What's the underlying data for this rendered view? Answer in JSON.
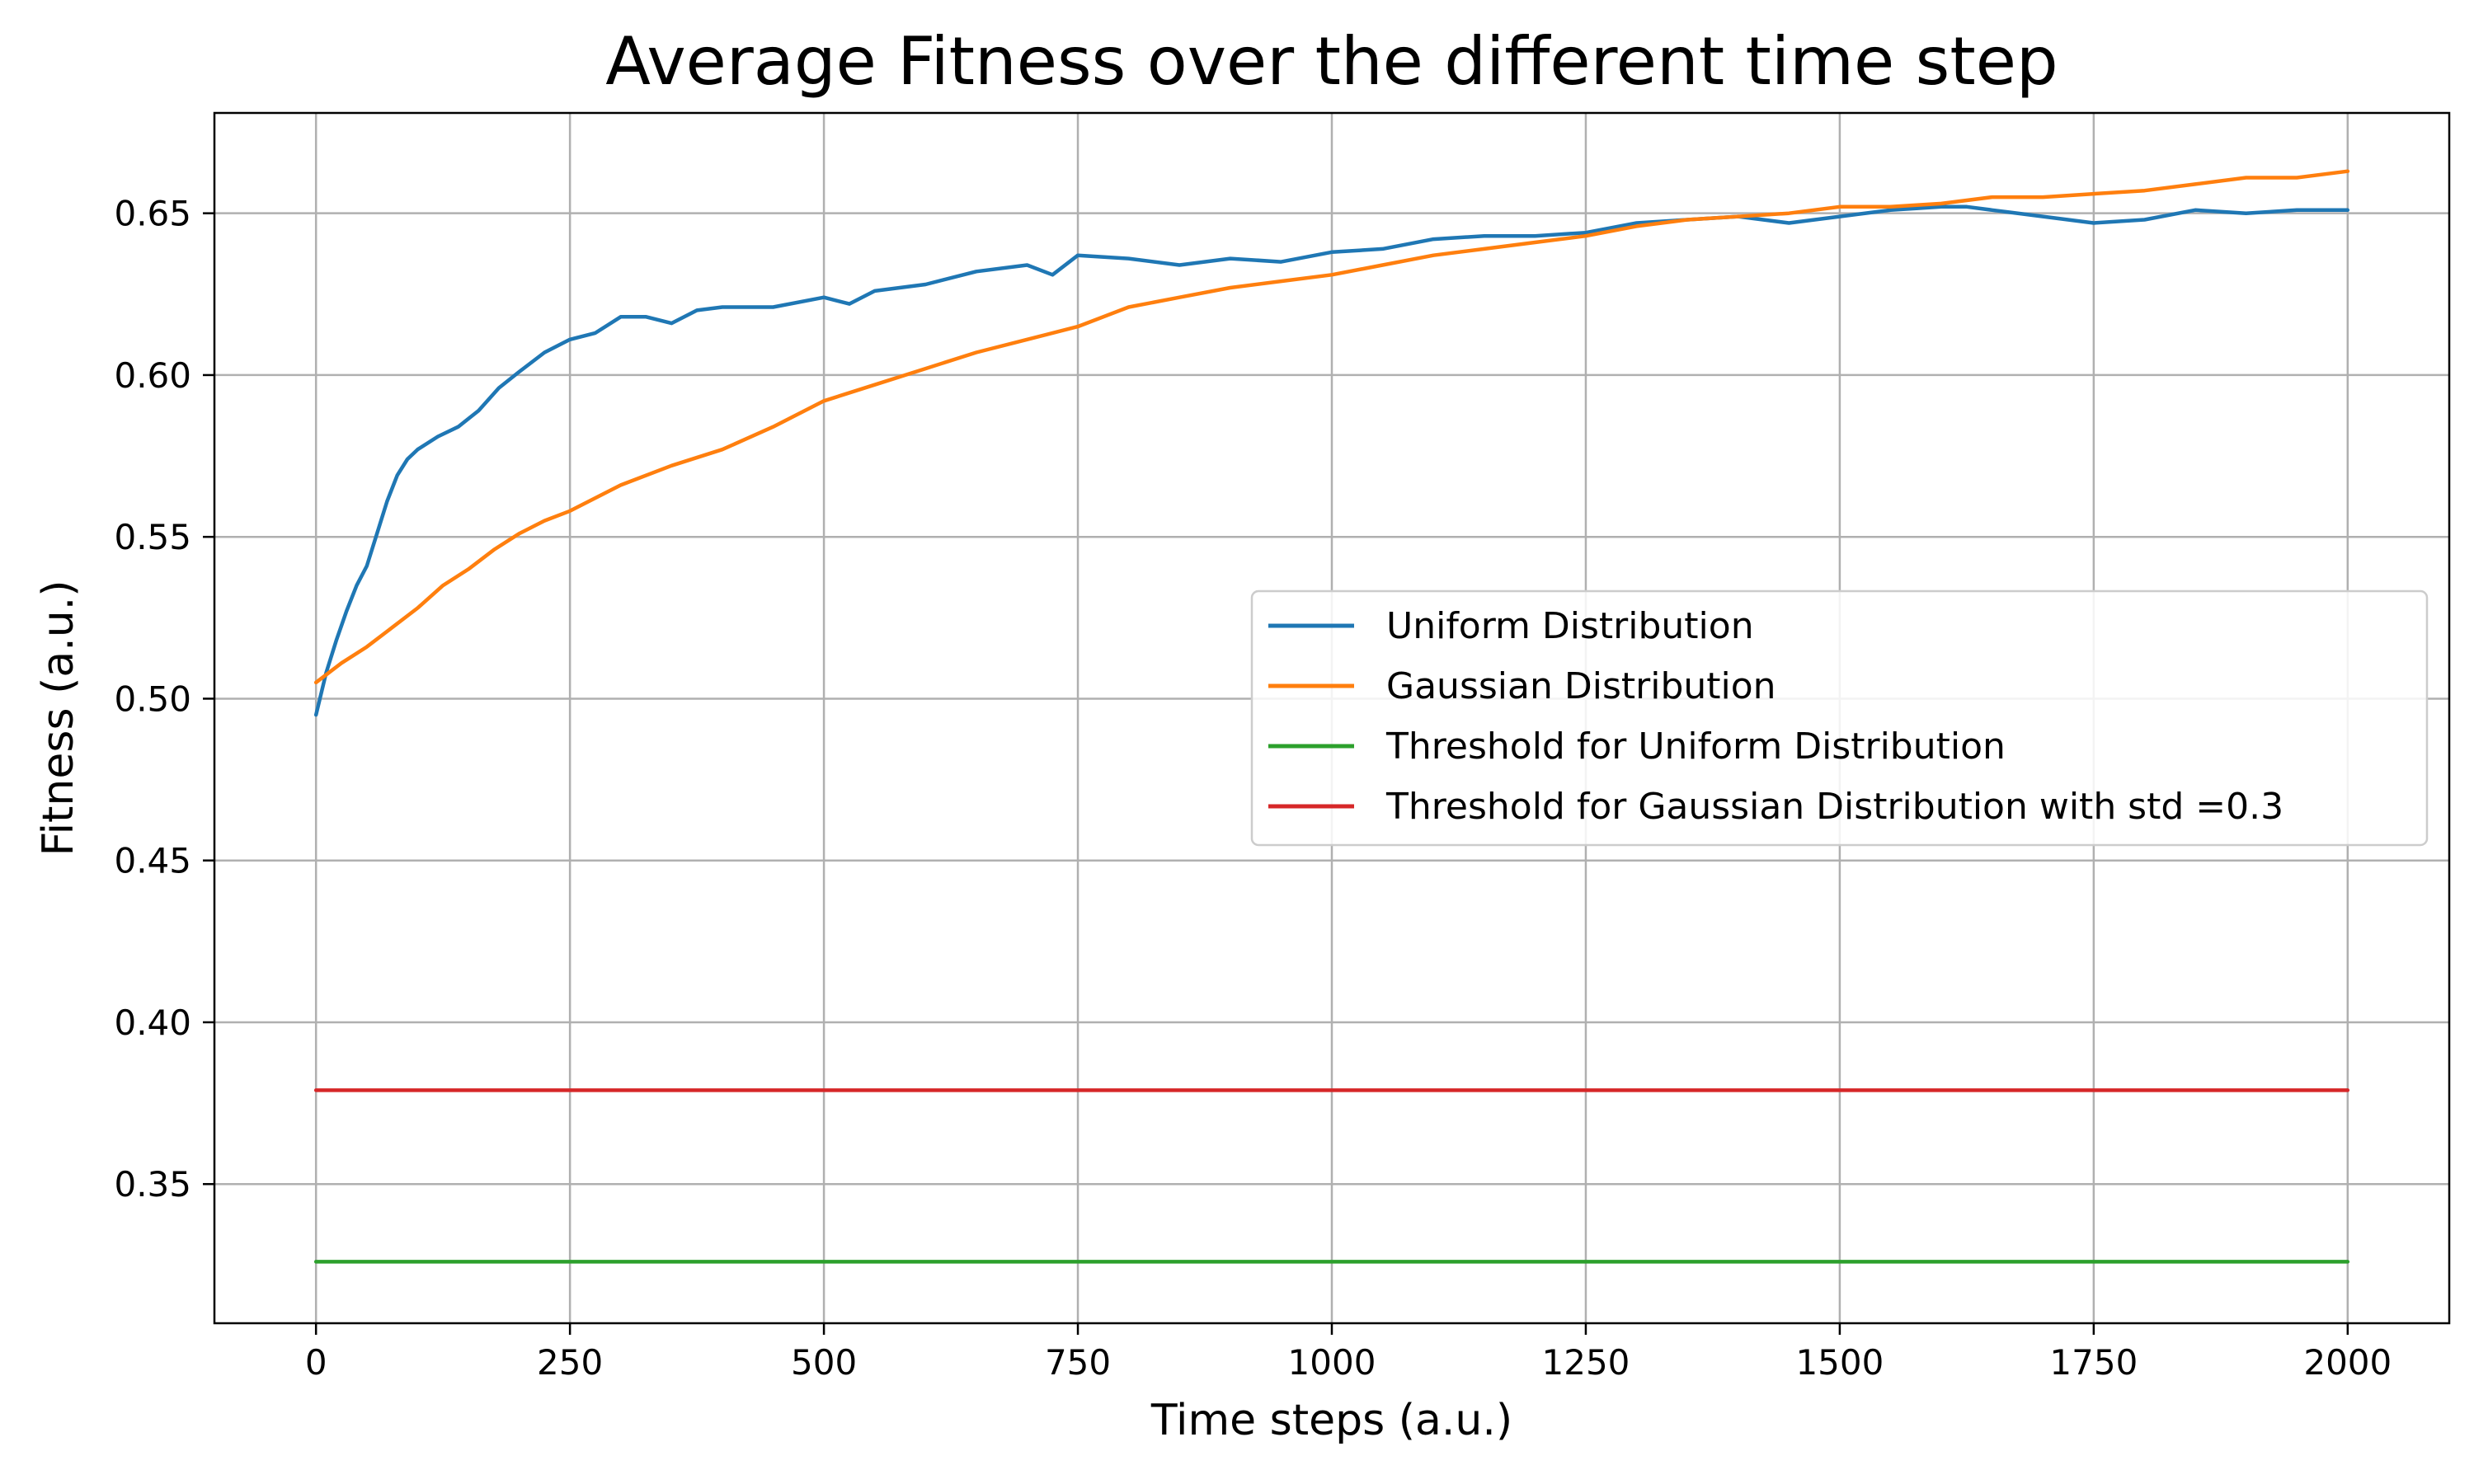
{
  "chart_data": {
    "type": "line",
    "title": "Average Fitness over the different time step",
    "xlabel": "Time steps (a.u.)",
    "ylabel": "Fitness (a.u.)",
    "xlim": [
      -100,
      2100
    ],
    "ylim": [
      0.307,
      0.681
    ],
    "xticks": [
      0,
      250,
      500,
      750,
      1000,
      1250,
      1500,
      1750,
      2000
    ],
    "yticks": [
      0.35,
      0.4,
      0.45,
      0.5,
      0.55,
      0.6,
      0.65
    ],
    "ytick_labels": [
      "0.35",
      "0.40",
      "0.45",
      "0.50",
      "0.55",
      "0.60",
      "0.65"
    ],
    "grid": true,
    "legend_position": "center-right",
    "series": [
      {
        "name": "Uniform Distribution",
        "color": "#1f77b4",
        "x": [
          0,
          10,
          20,
          30,
          40,
          50,
          60,
          70,
          80,
          90,
          100,
          120,
          140,
          160,
          180,
          200,
          225,
          250,
          275,
          300,
          325,
          350,
          375,
          400,
          450,
          500,
          525,
          550,
          600,
          650,
          700,
          725,
          750,
          800,
          850,
          900,
          950,
          1000,
          1050,
          1100,
          1150,
          1200,
          1250,
          1300,
          1350,
          1400,
          1450,
          1500,
          1550,
          1600,
          1625,
          1650,
          1700,
          1750,
          1800,
          1850,
          1900,
          1950,
          2000
        ],
        "y": [
          0.495,
          0.508,
          0.518,
          0.527,
          0.535,
          0.541,
          0.551,
          0.561,
          0.569,
          0.574,
          0.577,
          0.581,
          0.584,
          0.589,
          0.596,
          0.601,
          0.607,
          0.611,
          0.613,
          0.618,
          0.618,
          0.616,
          0.62,
          0.621,
          0.621,
          0.624,
          0.622,
          0.626,
          0.628,
          0.632,
          0.634,
          0.631,
          0.637,
          0.636,
          0.634,
          0.636,
          0.635,
          0.638,
          0.639,
          0.642,
          0.643,
          0.643,
          0.644,
          0.647,
          0.648,
          0.649,
          0.647,
          0.649,
          0.651,
          0.652,
          0.652,
          0.651,
          0.649,
          0.647,
          0.648,
          0.651,
          0.65,
          0.651,
          0.651
        ]
      },
      {
        "name": "Gaussian Distribution",
        "color": "#ff7f0e",
        "x": [
          0,
          25,
          50,
          75,
          100,
          125,
          150,
          175,
          200,
          225,
          250,
          300,
          350,
          400,
          450,
          500,
          550,
          600,
          650,
          700,
          750,
          800,
          850,
          900,
          950,
          1000,
          1050,
          1100,
          1150,
          1200,
          1250,
          1300,
          1350,
          1400,
          1450,
          1500,
          1550,
          1600,
          1650,
          1700,
          1750,
          1800,
          1850,
          1900,
          1950,
          2000
        ],
        "y": [
          0.505,
          0.511,
          0.516,
          0.522,
          0.528,
          0.535,
          0.54,
          0.546,
          0.551,
          0.555,
          0.558,
          0.566,
          0.572,
          0.577,
          0.584,
          0.592,
          0.597,
          0.602,
          0.607,
          0.611,
          0.615,
          0.621,
          0.624,
          0.627,
          0.629,
          0.631,
          0.634,
          0.637,
          0.639,
          0.641,
          0.643,
          0.646,
          0.648,
          0.649,
          0.65,
          0.652,
          0.652,
          0.653,
          0.655,
          0.655,
          0.656,
          0.657,
          0.659,
          0.661,
          0.661,
          0.663
        ]
      },
      {
        "name": "Threshold for Uniform Distribution",
        "color": "#2ca02c",
        "x": [
          0,
          2000
        ],
        "y": [
          0.326,
          0.326
        ]
      },
      {
        "name": "Threshold for Gaussian Distribution with std =0.3",
        "color": "#d62728",
        "x": [
          0,
          2000
        ],
        "y": [
          0.379,
          0.379
        ]
      }
    ]
  }
}
